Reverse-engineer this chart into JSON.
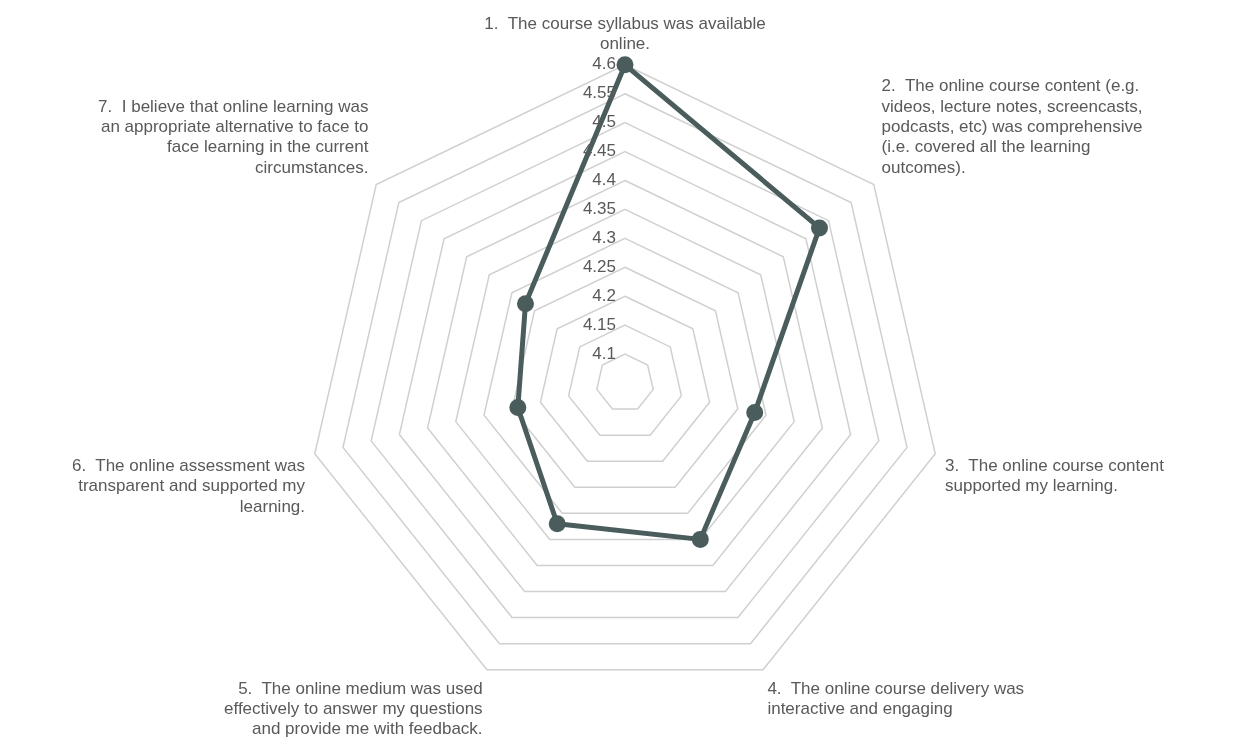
{
  "chart_data": {
    "type": "radar",
    "categories": [
      "1.  The course syllabus was available online.",
      "2.  The online course content (e.g. videos, lecture notes, screencasts, podcasts, etc) was comprehensive (i.e. covered all the learning outcomes).",
      "3.  The online course content supported my learning.",
      "4.  The online course delivery was interactive and engaging",
      "5.  The online medium was used effectively to answer my questions and provide me with feedback.",
      "6.  The online assessment was transparent and supported my learning.",
      "7.  I believe that online learning was an appropriate alternative to face to face learning in the current circumstances."
    ],
    "series": [
      {
        "color": "#4a5c5c",
        "values": [
          4.6,
          4.48,
          4.28,
          4.35,
          4.32,
          4.24,
          4.27
        ]
      }
    ],
    "ylim": [
      4.05,
      4.6
    ],
    "yticks": [
      4.1,
      4.15,
      4.2,
      4.25,
      4.3,
      4.35,
      4.4,
      4.45,
      4.5,
      4.55,
      4.6
    ],
    "grid": true,
    "legend": false,
    "marker": "circle",
    "line_style": "solid"
  }
}
